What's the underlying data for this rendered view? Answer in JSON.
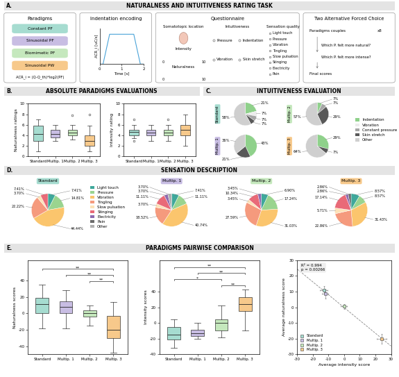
{
  "sections": [
    {
      "label": "A.",
      "title": "NATURALNESS AND INTUITIVENESS RATING TASK"
    },
    {
      "label": "B.",
      "title": "ABSOLUTE PARADIGMS EVALUATIONS"
    },
    {
      "label": "C.",
      "title": "INTUITIVENESS EVALUATION"
    },
    {
      "label": "D.",
      "title": "SENSATION DESCRIPTION"
    },
    {
      "label": "E.",
      "title": "PARADIGMS PAIRWISE COMPARISON"
    }
  ],
  "panel_a": {
    "paradigms": {
      "title": "Paradigms",
      "items": [
        "Constant PF",
        "Sinusoidal PF",
        "Biomimetic PF",
        "Sinusoidal PW"
      ],
      "colors": [
        "#a6dcd0",
        "#c8bde3",
        "#c5e8bd",
        "#f7c98b"
      ],
      "formula": "ACR_i = (Q-Q_th)*log2(PF)"
    },
    "encoding": {
      "title": "Indentation encoding",
      "type": "line",
      "x": [
        0,
        0.15,
        0.45,
        1.55,
        1.85,
        2
      ],
      "values": [
        0,
        0,
        10,
        10,
        0,
        0
      ],
      "xlim": [
        0,
        2
      ],
      "xticks": [
        0,
        1,
        2
      ],
      "ylim": [
        0,
        12
      ],
      "xlabel": "Time [s]",
      "ylabel": "ACR_i [uC/s]",
      "tick_labels": "x",
      "color": "#4aa3d8"
    },
    "questionnaire": {
      "title": "Questionnaire",
      "location": "Somatotopic location",
      "intensity": {
        "label": "Intensity",
        "range": [
          0,
          10
        ]
      },
      "naturalness": {
        "label": "Naturalness",
        "range": [
          0,
          10
        ]
      },
      "intuitiveness": {
        "title": "Intuitiveness",
        "options": [
          "Pressure",
          "Indentation",
          "Vibration",
          "Skin stretch"
        ]
      },
      "sensation": {
        "title": "Sensation quality",
        "options": [
          "Light touch",
          "Pressure",
          "Vibration",
          "Tingling",
          "Slow pulsation",
          "Stinging",
          "Electricity",
          "Pain"
        ]
      }
    },
    "afc": {
      "title": "Two Alternative Forced Choice",
      "steps": [
        "Paradigms couples",
        "x8",
        "Which P. felt more natural?",
        "Which P. felt more intense?",
        "Final scores"
      ]
    }
  },
  "chart_data": [
    {
      "type": "box",
      "ylabel": "Naturalness ratings",
      "categories": [
        "Standard",
        "Multip. 1",
        "Multip. 2",
        "Multip. 3"
      ],
      "colors": [
        "#a6dcd0",
        "#c8bde3",
        "#c5e8bd",
        "#f7c98b"
      ],
      "whislo": [
        1,
        3,
        3.2,
        1
      ],
      "q1": [
        3,
        3.6,
        4,
        2
      ],
      "median": [
        4.3,
        4.3,
        4.5,
        3
      ],
      "q3": [
        5.8,
        5,
        5,
        4
      ],
      "whishi": [
        7,
        6,
        6,
        5.8
      ],
      "fliers": [
        [],
        [],
        [
          7.8
        ],
        [
          8
        ]
      ],
      "ylim": [
        0,
        10
      ],
      "yticks": [
        0,
        2,
        4,
        6,
        8,
        10
      ]
    },
    {
      "type": "box",
      "ylabel": "Intensity rating",
      "categories": [
        "Standard",
        "Multip. 1",
        "Multip. 2",
        "Multip. 3"
      ],
      "colors": [
        "#a6dcd0",
        "#c8bde3",
        "#c5e8bd",
        "#f7c98b"
      ],
      "whislo": [
        3.5,
        3,
        3,
        2
      ],
      "q1": [
        4,
        4,
        4,
        4
      ],
      "median": [
        4.7,
        4.5,
        4.5,
        5
      ],
      "q3": [
        5,
        5,
        5,
        6
      ],
      "whishi": [
        6,
        6,
        6,
        8
      ],
      "fliers": [
        [
          2.9,
          7
        ],
        [],
        [
          7
        ],
        []
      ],
      "ylim": [
        0,
        10
      ],
      "yticks": [
        0,
        2,
        4,
        6,
        8,
        10
      ]
    },
    {
      "type": "pie",
      "legend": "right",
      "categories": [
        "Indentation",
        "Vibration",
        "Constant pressure",
        "Skin stretch",
        "Other"
      ],
      "colors": [
        "#8fd18b",
        "#ececec",
        "#a6a6a6",
        "#595959",
        "#cfcfcf"
      ],
      "pies": [
        {
          "name": "Standard",
          "color": "#a6dcd0",
          "categories": [
            "Indentation",
            "Vibration",
            "Constant pressure",
            "Skin stretch",
            "Other"
          ],
          "values": [
            21,
            7,
            7,
            7,
            58
          ],
          "value_labels": [
            "21%",
            "7%",
            "7%",
            "7%",
            "58%"
          ]
        },
        {
          "name": "Multip. 2",
          "color": "#c5e8bd",
          "categories": [
            "Indentation",
            "Constant pressure",
            "Skin stretch",
            "Other"
          ],
          "values": [
            7,
            7,
            29,
            57
          ],
          "value_labels": [
            "7%",
            "7%",
            "29%",
            "57%"
          ]
        },
        {
          "name": "Multip. 1",
          "color": "#c8bde3",
          "categories": [
            "Indentation",
            "Skin stretch",
            "Other"
          ],
          "values": [
            43,
            21,
            36
          ],
          "value_labels": [
            "43%",
            "21%",
            "36%"
          ]
        },
        {
          "name": "Multip. 3",
          "color": "#f7c98b",
          "categories": [
            "Indentation",
            "Skin stretch",
            "Other"
          ],
          "values": [
            29,
            7,
            64
          ],
          "value_labels": [
            "29%",
            "7%",
            "64%"
          ]
        }
      ]
    },
    {
      "type": "pie",
      "legend": "left",
      "categories": [
        "Light touch",
        "Pressure",
        "Vibration",
        "Tingling",
        "Slow pulsation",
        "Stinging",
        "Electricity",
        "Pain",
        "Other"
      ],
      "colors": [
        "#3fa89b",
        "#9ad48f",
        "#fbc56d",
        "#f59a7d",
        "#fde2b8",
        "#e96a78",
        "#8e6bb0",
        "#6b6b6b",
        "#b0b0b0"
      ],
      "pies": [
        {
          "name": "Standard",
          "color": "#a6dcd0",
          "categories": [
            "Light touch",
            "Pressure",
            "Vibration",
            "Tingling",
            "Slow pulsation",
            "Stinging"
          ],
          "values": [
            7.41,
            14.81,
            44.44,
            22.22,
            3.7,
            7.41
          ],
          "value_labels": [
            "7.41%",
            "14.81%",
            "44.44%",
            "22.22%",
            "3.70%",
            "7.41%"
          ]
        },
        {
          "name": "Multip. 1",
          "color": "#c8bde3",
          "categories": [
            "Light touch",
            "Pressure",
            "Vibration",
            "Tingling",
            "Slow pulsation",
            "Stinging",
            "Electricity",
            "Other"
          ],
          "values": [
            7.41,
            11.11,
            40.74,
            18.52,
            3.7,
            11.11,
            3.7,
            3.7
          ],
          "value_labels": [
            "7.41%",
            "11.11%",
            "40.74%",
            "18.52%",
            "3.70%",
            "11.11%",
            "3.70%",
            "3.70%"
          ]
        },
        {
          "name": "Multip. 2",
          "color": "#c5e8bd",
          "categories": [
            "Light touch",
            "Pressure",
            "Vibration",
            "Tingling",
            "Slow pulsation",
            "Stinging",
            "Electricity"
          ],
          "values": [
            6.9,
            17.24,
            31.03,
            27.59,
            3.45,
            10.34,
            3.45
          ],
          "value_labels": [
            "6.90%",
            "17.24%",
            "31.03%",
            "27.59%",
            "3.45%",
            "10.34%",
            "3.45%"
          ]
        },
        {
          "name": "Multip. 3",
          "color": "#f7c98b",
          "categories": [
            "Light touch",
            "Pressure",
            "Vibration",
            "Tingling",
            "Slow pulsation",
            "Stinging",
            "Electricity",
            "Pain"
          ],
          "values": [
            8.57,
            8.57,
            31.43,
            22.86,
            5.71,
            17.14,
            2.86,
            2.86
          ],
          "value_labels": [
            "8.57%",
            "8.57%",
            "31.43%",
            "22.86%",
            "5.71%",
            "17.14%",
            "2.86%",
            "2.86%"
          ]
        }
      ]
    },
    {
      "type": "box",
      "ylabel": "Naturalness scores",
      "categories": [
        "Standard",
        "Multip. 1",
        "Multip. 2",
        "Multip. 3"
      ],
      "colors": [
        "#a6dcd0",
        "#c8bde3",
        "#c5e8bd",
        "#f7c98b"
      ],
      "whislo": [
        -18,
        -18,
        -15,
        -48
      ],
      "q1": [
        0,
        0,
        -4,
        -30
      ],
      "median": [
        11,
        8,
        0,
        -20
      ],
      "q3": [
        19,
        15,
        4,
        -3
      ],
      "whishi": [
        35,
        28,
        10,
        14
      ],
      "fliers": [
        [],
        [],
        [],
        []
      ],
      "ylim": [
        -50,
        65
      ],
      "yticks": [
        -40,
        -20,
        0,
        20,
        40
      ],
      "significance": [
        {
          "pair": [
            0,
            3
          ],
          "label": "**"
        },
        {
          "pair": [
            1,
            3
          ],
          "label": "**"
        },
        {
          "pair": [
            2,
            3
          ],
          "label": "**"
        }
      ]
    },
    {
      "type": "box",
      "ylabel": "Intensity scores",
      "categories": [
        "Standard",
        "Multip. 1",
        "Multip. 2",
        "Multip. 3"
      ],
      "colors": [
        "#a6dcd0",
        "#c8bde3",
        "#c5e8bd",
        "#f7c98b"
      ],
      "whislo": [
        -32,
        -20,
        -18,
        -10
      ],
      "q1": [
        -21,
        -17,
        -10,
        15
      ],
      "median": [
        -15,
        -13,
        0,
        24
      ],
      "q3": [
        -5,
        -9,
        5,
        33
      ],
      "whishi": [
        5,
        0,
        22,
        43
      ],
      "fliers": [
        [],
        [],
        [],
        []
      ],
      "ylim": [
        -40,
        80
      ],
      "yticks": [
        -40,
        -20,
        0,
        20,
        40
      ],
      "significance": [
        {
          "pair": [
            0,
            2
          ],
          "label": "*"
        },
        {
          "pair": [
            0,
            3
          ],
          "label": "**"
        },
        {
          "pair": [
            1,
            3
          ],
          "label": "**"
        },
        {
          "pair": [
            2,
            3
          ],
          "label": "**"
        }
      ]
    },
    {
      "type": "scatter",
      "xlabel": "Average intensity score",
      "ylabel": "Average naturalness score",
      "xlim": [
        -30,
        30
      ],
      "xticks": [
        -30,
        -20,
        -10,
        0,
        10,
        20,
        30
      ],
      "ylim": [
        -30,
        30
      ],
      "yticks": [
        -30,
        -20,
        -10,
        0,
        10,
        20,
        30
      ],
      "legend": "lower left",
      "marker": "s",
      "line_style": "dashed",
      "annotations": [
        "R² = 0.994",
        "p = 0.00266"
      ],
      "series": [
        {
          "name": "Standard",
          "color": "#a6dcd0",
          "x": [
            -13
          ],
          "values": [
            11
          ],
          "xerr": [
            2.5
          ],
          "yerr": [
            2.5
          ]
        },
        {
          "name": "Multip. 1",
          "color": "#c8bde3",
          "x": [
            -12
          ],
          "values": [
            8.5
          ],
          "xerr": [
            2
          ],
          "yerr": [
            3
          ]
        },
        {
          "name": "Multip. 2",
          "color": "#c5e8bd",
          "x": [
            0
          ],
          "values": [
            0.5
          ],
          "xerr": [
            2
          ],
          "yerr": [
            1.5
          ]
        },
        {
          "name": "Multip. 3",
          "color": "#f7c98b",
          "x": [
            24
          ],
          "values": [
            -20
          ],
          "xerr": [
            3
          ],
          "yerr": [
            3
          ]
        }
      ]
    }
  ]
}
